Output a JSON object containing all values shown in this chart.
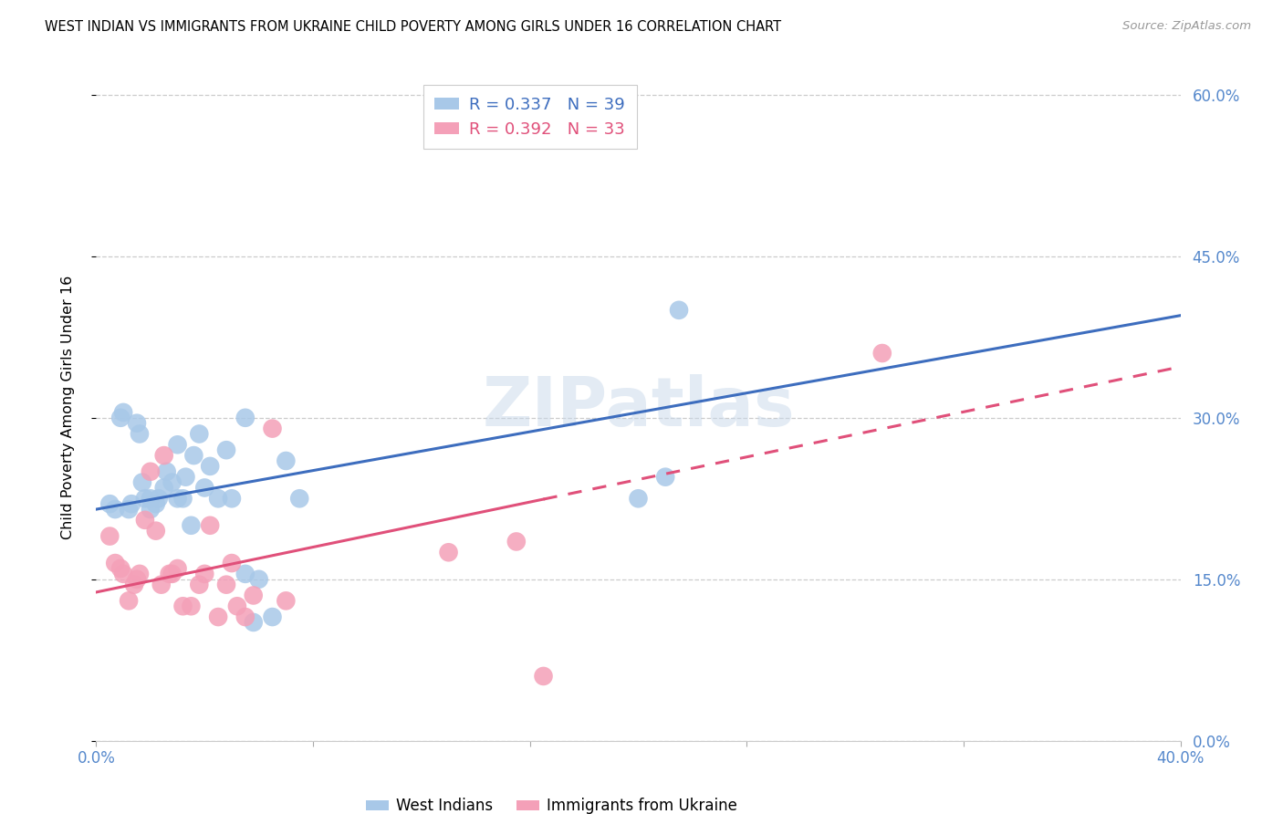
{
  "title": "WEST INDIAN VS IMMIGRANTS FROM UKRAINE CHILD POVERTY AMONG GIRLS UNDER 16 CORRELATION CHART",
  "source": "Source: ZipAtlas.com",
  "ylabel": "Child Poverty Among Girls Under 16",
  "right_yticklabels": [
    "0.0%",
    "15.0%",
    "30.0%",
    "45.0%",
    "60.0%"
  ],
  "right_ytick_vals": [
    0.0,
    0.15,
    0.3,
    0.45,
    0.6
  ],
  "xlim": [
    0.0,
    0.4
  ],
  "ylim": [
    0.0,
    0.62
  ],
  "line1_color": "#3d6dbe",
  "line2_color": "#e0507a",
  "scatter1_color": "#a8c8e8",
  "scatter2_color": "#f4a0b8",
  "legend_text_color1": "#3d6dbe",
  "legend_text_color2": "#e0507a",
  "tick_color": "#5588cc",
  "west_indian_x": [
    0.005,
    0.007,
    0.009,
    0.01,
    0.012,
    0.013,
    0.015,
    0.016,
    0.017,
    0.018,
    0.02,
    0.02,
    0.022,
    0.023,
    0.025,
    0.026,
    0.028,
    0.03,
    0.032,
    0.033,
    0.035,
    0.036,
    0.038,
    0.04,
    0.042,
    0.045,
    0.048,
    0.05,
    0.055,
    0.058,
    0.06,
    0.065,
    0.07,
    0.075,
    0.03,
    0.055,
    0.2,
    0.21,
    0.215
  ],
  "west_indian_y": [
    0.22,
    0.215,
    0.3,
    0.305,
    0.215,
    0.22,
    0.295,
    0.285,
    0.24,
    0.225,
    0.215,
    0.225,
    0.22,
    0.225,
    0.235,
    0.25,
    0.24,
    0.225,
    0.225,
    0.245,
    0.2,
    0.265,
    0.285,
    0.235,
    0.255,
    0.225,
    0.27,
    0.225,
    0.155,
    0.11,
    0.15,
    0.115,
    0.26,
    0.225,
    0.275,
    0.3,
    0.225,
    0.245,
    0.4
  ],
  "ukraine_x": [
    0.005,
    0.007,
    0.009,
    0.01,
    0.012,
    0.014,
    0.015,
    0.016,
    0.018,
    0.02,
    0.022,
    0.024,
    0.025,
    0.027,
    0.028,
    0.03,
    0.032,
    0.035,
    0.038,
    0.04,
    0.042,
    0.045,
    0.048,
    0.05,
    0.052,
    0.055,
    0.058,
    0.065,
    0.07,
    0.13,
    0.155,
    0.165,
    0.29
  ],
  "ukraine_y": [
    0.19,
    0.165,
    0.16,
    0.155,
    0.13,
    0.145,
    0.15,
    0.155,
    0.205,
    0.25,
    0.195,
    0.145,
    0.265,
    0.155,
    0.155,
    0.16,
    0.125,
    0.125,
    0.145,
    0.155,
    0.2,
    0.115,
    0.145,
    0.165,
    0.125,
    0.115,
    0.135,
    0.29,
    0.13,
    0.175,
    0.185,
    0.06,
    0.36
  ],
  "line1_x0": 0.0,
  "line1_y0": 0.215,
  "line1_x1": 0.4,
  "line1_y1": 0.395,
  "line2_x0": 0.0,
  "line2_y0": 0.138,
  "line2_x1": 0.3,
  "line2_y1": 0.295,
  "line2_solid_x0": 0.0,
  "line2_solid_x1": 0.165,
  "line2_dash_x0": 0.165,
  "line2_dash_x1": 0.4
}
